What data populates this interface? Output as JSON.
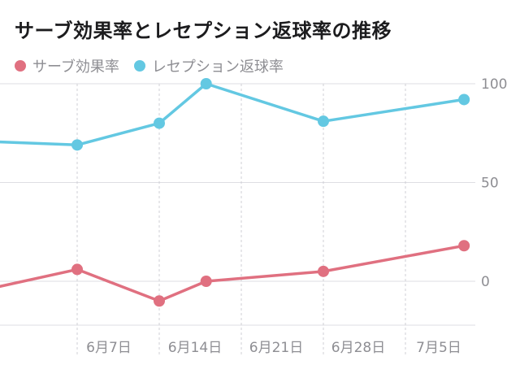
{
  "chart_data": {
    "type": "line",
    "title": "サーブ効果率とレセプション返球率の推移",
    "x": [
      "2024-05-25",
      "2024-06-07",
      "2024-06-14",
      "2024-06-18",
      "2024-06-28",
      "2024-07-10"
    ],
    "x_tick_labels": [
      "6月7日",
      "6月14日",
      "6月21日",
      "6月28日",
      "7月5日"
    ],
    "y_ticks": [
      "100",
      "50",
      "0"
    ],
    "ylim": [
      -20,
      100
    ],
    "grid": true,
    "legend_position": "top-left",
    "series": [
      {
        "name": "サーブ効果率",
        "color": "#e07080",
        "values": [
          -11,
          6,
          -10,
          0,
          5,
          18
        ]
      },
      {
        "name": "レセプション返球率",
        "color": "#63c8e2",
        "values": [
          72,
          69,
          80,
          100,
          81,
          92
        ]
      }
    ]
  }
}
